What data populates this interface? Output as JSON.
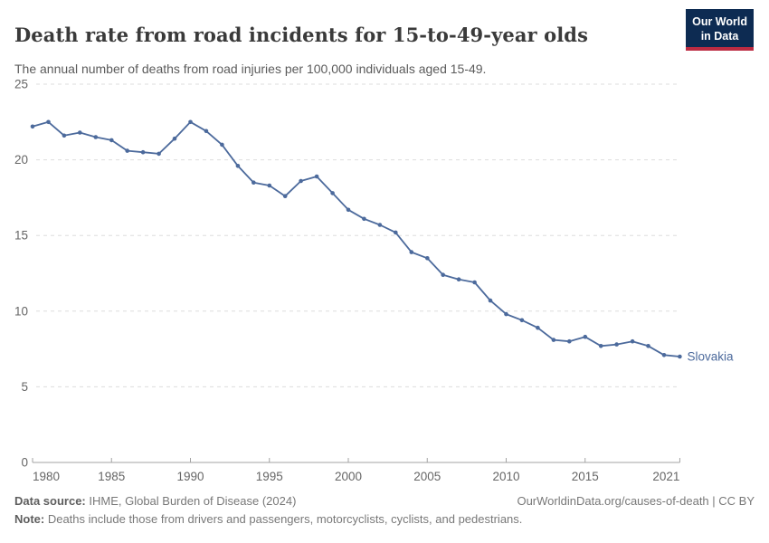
{
  "header": {
    "title": "Death rate from road incidents for 15-to-49-year olds",
    "subtitle": "The annual number of deaths from road injuries per 100,000 individuals aged 15-49.",
    "logo": {
      "line1": "Our World",
      "line2": "in Data"
    }
  },
  "chart_data": {
    "type": "line",
    "title": "Death rate from road incidents for 15-to-49-year olds",
    "subtitle": "The annual number of deaths from road injuries per 100,000 individuals aged 15-49.",
    "xlabel": "",
    "ylabel": "",
    "xlim": [
      1980,
      2021
    ],
    "ylim": [
      0,
      25
    ],
    "x_ticks": [
      1980,
      1985,
      1990,
      1995,
      2000,
      2005,
      2010,
      2015,
      2021
    ],
    "y_ticks": [
      0,
      5,
      10,
      15,
      20,
      25
    ],
    "grid": "horizontal-dashed",
    "legend_position": "end-of-line-label",
    "series": [
      {
        "name": "Slovakia",
        "color": "#4C6A9C",
        "x": [
          1980,
          1981,
          1982,
          1983,
          1984,
          1985,
          1986,
          1987,
          1988,
          1989,
          1990,
          1991,
          1992,
          1993,
          1994,
          1995,
          1996,
          1997,
          1998,
          1999,
          2000,
          2001,
          2002,
          2003,
          2004,
          2005,
          2006,
          2007,
          2008,
          2009,
          2010,
          2011,
          2012,
          2013,
          2014,
          2015,
          2016,
          2017,
          2018,
          2019,
          2020,
          2021
        ],
        "values": [
          22.2,
          22.5,
          21.6,
          21.8,
          21.5,
          21.3,
          20.6,
          20.5,
          20.4,
          21.4,
          22.5,
          21.9,
          21.0,
          19.6,
          18.5,
          18.3,
          17.6,
          18.6,
          18.9,
          17.8,
          16.7,
          16.1,
          15.7,
          15.2,
          13.9,
          13.5,
          12.4,
          12.1,
          11.9,
          10.7,
          9.8,
          9.4,
          8.9,
          8.1,
          8.0,
          8.3,
          7.7,
          7.8,
          8.0,
          7.7,
          7.1,
          7.0
        ]
      }
    ],
    "end_label": "Slovakia"
  },
  "footer": {
    "datasource_label": "Data source:",
    "datasource_text": " IHME, Global Burden of Disease (2024)",
    "link_text": "OurWorldinData.org/causes-of-death | CC BY",
    "note_label": "Note:",
    "note_text": " Deaths include those from drivers and passengers, motorcyclists, cyclists, and pedestrians."
  },
  "colors": {
    "line": "#4C6A9C",
    "grid": "#dddddd",
    "axis": "#a3a3a3",
    "tick_label": "#666666",
    "title": "#3a3a3a",
    "subtitle": "#5b5b5b",
    "footer_text": "#787878",
    "logo_bg": "#0d2b52",
    "logo_accent": "#bc2b42"
  }
}
